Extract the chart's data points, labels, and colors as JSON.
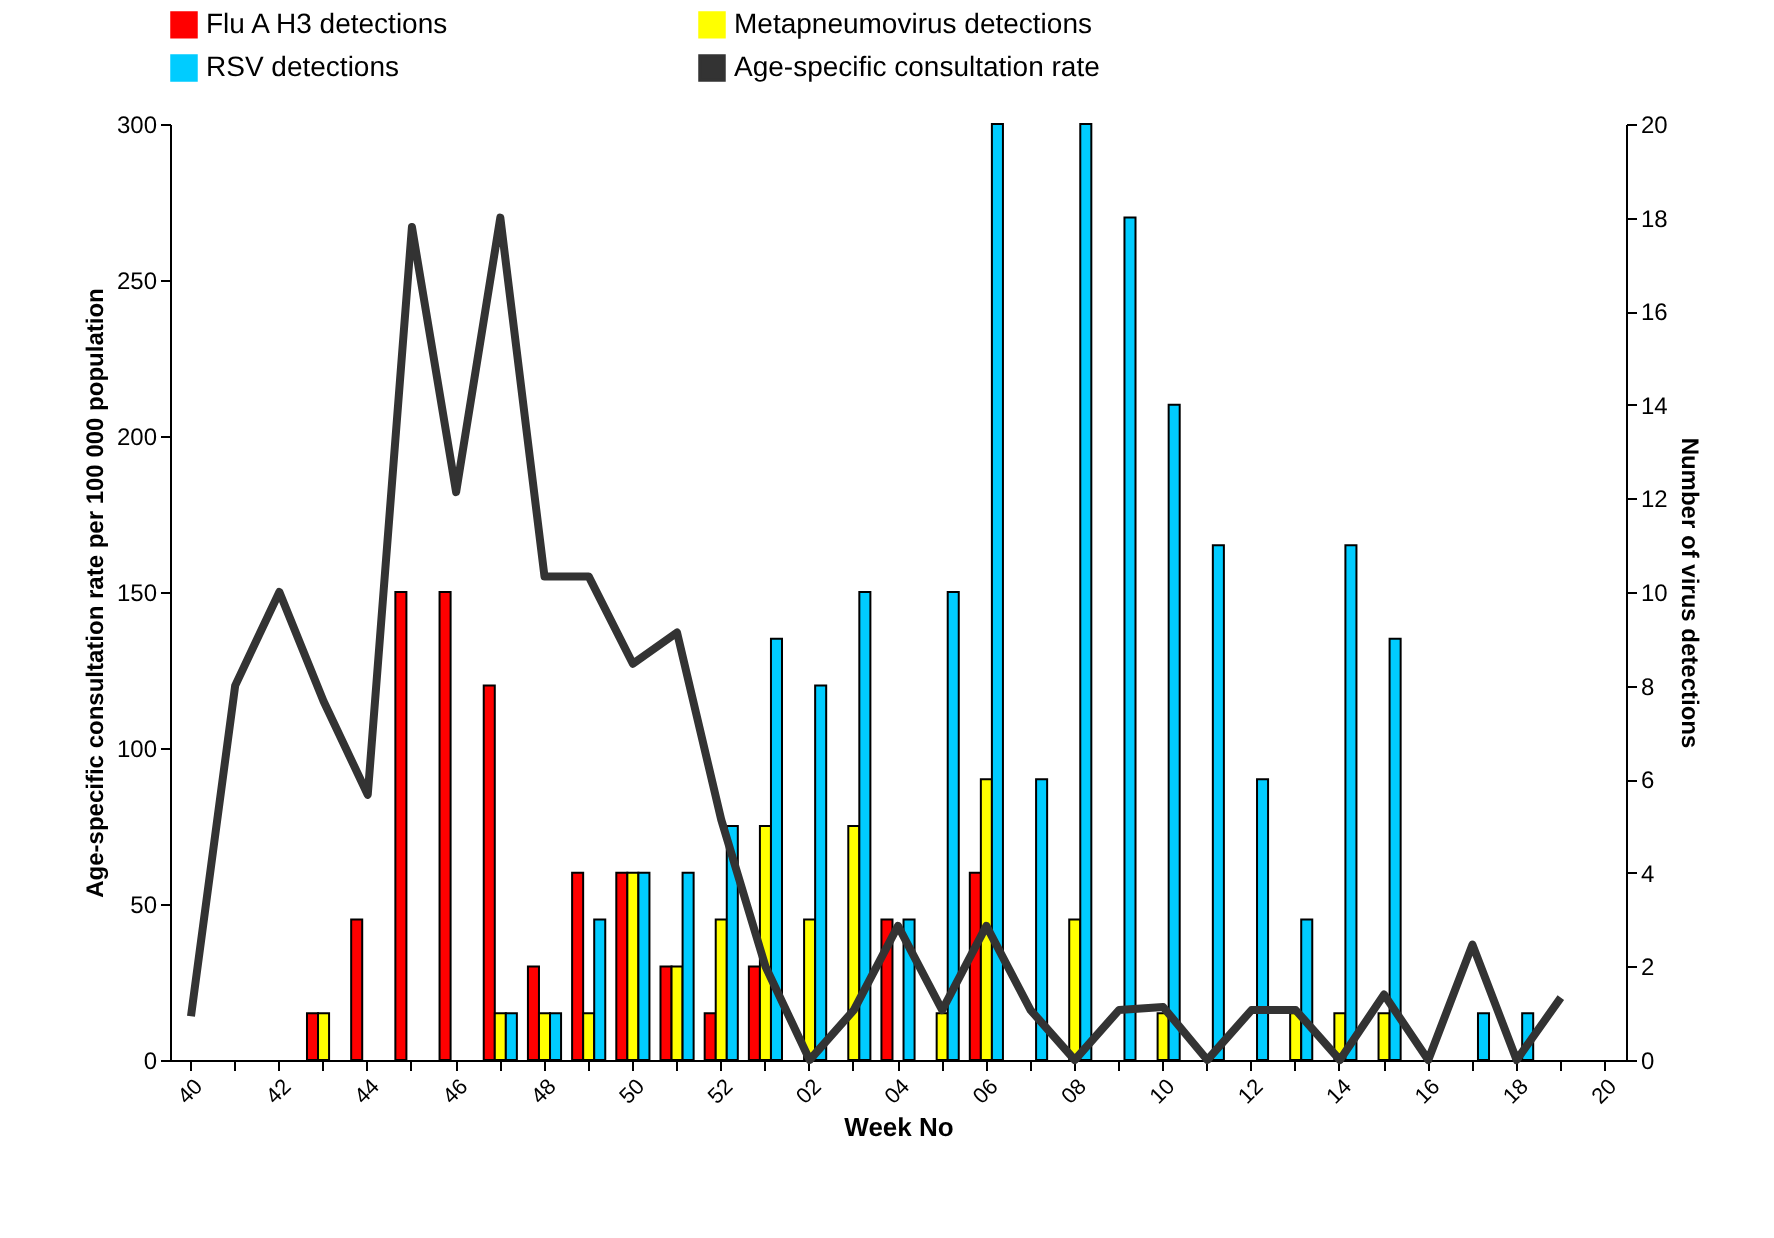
{
  "chart_data": {
    "type": "bar",
    "xlabel": "Week No",
    "ylabel": "Age-specific consultation rate per 100 000 population",
    "y2label": "Number of virus detections",
    "categories": [
      "40",
      null,
      "42",
      null,
      "44",
      null,
      "46",
      null,
      "48",
      null,
      "50",
      null,
      "52",
      null,
      "02",
      null,
      "04",
      null,
      "06",
      null,
      "08",
      null,
      "10",
      null,
      "12",
      null,
      "14",
      null,
      "16",
      null,
      "18",
      null,
      "20"
    ],
    "series": [
      {
        "name": "Flu A H3 detections",
        "axis": "y2",
        "color": "#ff0000",
        "values": [
          null,
          null,
          null,
          1,
          3,
          10,
          10,
          8,
          2,
          4,
          4,
          2,
          1,
          2,
          null,
          null,
          3,
          null,
          4,
          null,
          null,
          null,
          null,
          null,
          null,
          null,
          null,
          null,
          null,
          null,
          null,
          null,
          null
        ]
      },
      {
        "name": "Metapneumovirus detections",
        "axis": "y2",
        "color": "#ffff00",
        "values": [
          null,
          null,
          null,
          1,
          null,
          null,
          null,
          1,
          1,
          1,
          4,
          2,
          3,
          5,
          3,
          5,
          null,
          1,
          6,
          null,
          3,
          null,
          1,
          null,
          null,
          1,
          1,
          1,
          null,
          null,
          null,
          null,
          null
        ]
      },
      {
        "name": "RSV detections",
        "axis": "y2",
        "color": "#00ccff",
        "values": [
          null,
          null,
          null,
          null,
          null,
          null,
          null,
          1,
          1,
          3,
          4,
          4,
          5,
          9,
          8,
          10,
          3,
          10,
          20,
          6,
          20,
          18,
          14,
          11,
          6,
          3,
          11,
          9,
          null,
          1,
          1,
          null,
          null
        ]
      },
      {
        "name": "Age-specific consultation rate",
        "type": "line",
        "axis": "y",
        "color": "#333333",
        "values": [
          14,
          120,
          150,
          115,
          85,
          267,
          182,
          270,
          155,
          155,
          127,
          137,
          77,
          30,
          0,
          16,
          43,
          16,
          43,
          16,
          0,
          16,
          17,
          0,
          16,
          16,
          0,
          21,
          0,
          37,
          0,
          20,
          null
        ]
      }
    ],
    "ylim": [
      0,
      300
    ],
    "yticks": [
      0,
      50,
      100,
      150,
      200,
      250,
      300
    ],
    "y2lim": [
      0,
      20
    ],
    "y2ticks": [
      0,
      2,
      4,
      6,
      8,
      10,
      12,
      14,
      16,
      18,
      20
    ],
    "grid": false,
    "legend": "top",
    "marker": "none",
    "line_style": "solid"
  }
}
